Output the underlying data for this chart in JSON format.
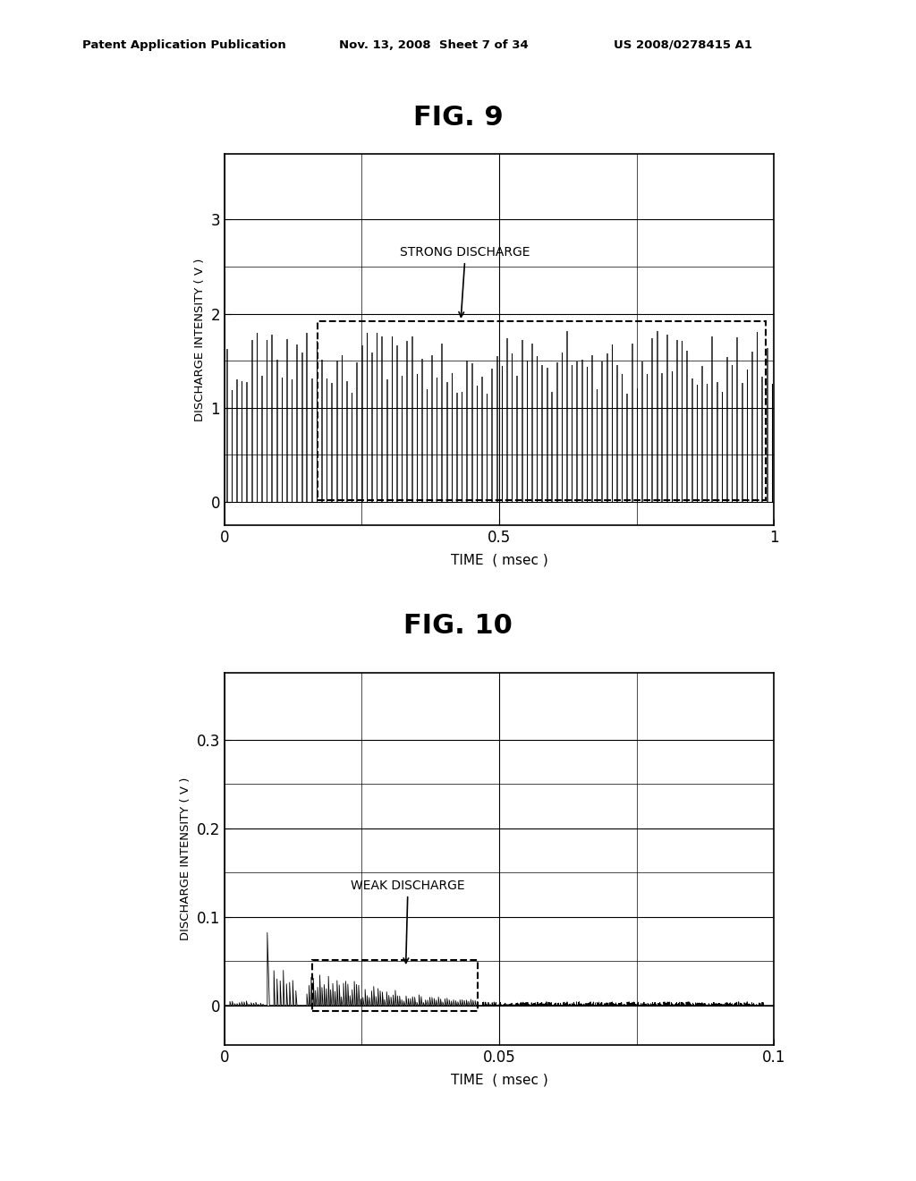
{
  "header_left": "Patent Application Publication",
  "header_mid": "Nov. 13, 2008  Sheet 7 of 34",
  "header_right": "US 2008/0278415 A1",
  "fig9_title": "FIG. 9",
  "fig10_title": "FIG. 10",
  "fig9_xlabel": "TIME  ( msec )",
  "fig9_ylabel": "DISCHARGE INTENSITY ( V )",
  "fig10_xlabel": "TIME  ( msec )",
  "fig10_ylabel": "DISCHARGE INTENSITY ( V )",
  "fig9_xlim": [
    0,
    1.0
  ],
  "fig9_ylim": [
    -0.25,
    3.7
  ],
  "fig9_yticks": [
    0,
    1,
    2,
    3
  ],
  "fig9_xticks": [
    0,
    0.5,
    1.0
  ],
  "fig10_xlim": [
    0,
    0.1
  ],
  "fig10_ylim": [
    -0.045,
    0.375
  ],
  "fig10_yticks": [
    0,
    0.1,
    0.2,
    0.3
  ],
  "fig10_xticks": [
    0,
    0.05,
    0.1
  ],
  "fig9_annotation": "STRONG DISCHARGE",
  "fig10_annotation": "WEAK DISCHARGE",
  "bg_color": "#ffffff",
  "line_color": "#000000"
}
